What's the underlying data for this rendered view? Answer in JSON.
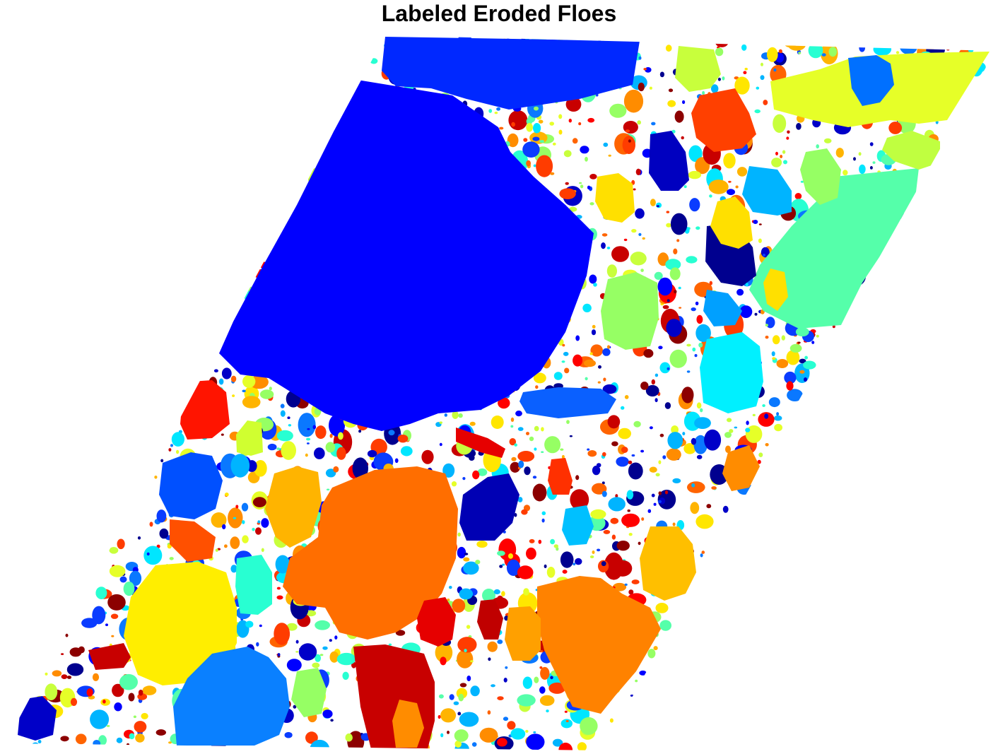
{
  "figure": {
    "title": "Labeled Eroded Floes",
    "background_color": "#ffffff",
    "colormap": "jet",
    "colormap_samples": [
      "#00008f",
      "#0000c8",
      "#0000ff",
      "#0a3cff",
      "#0a78ff",
      "#00b4ff",
      "#00e6ff",
      "#28ffd2",
      "#55ffaa",
      "#96ff64",
      "#c8ff3c",
      "#e6ff28",
      "#ffe600",
      "#ffb400",
      "#ff8c00",
      "#ff6400",
      "#ff3c00",
      "#ff0000",
      "#c80000",
      "#8c0000"
    ],
    "floes": [
      {
        "label": 1,
        "color": "#0a28ff"
      },
      {
        "label": 2,
        "color": "#0000ff"
      },
      {
        "label": 3,
        "color": "#ff6e00"
      },
      {
        "label": 4,
        "color": "#ffe600"
      },
      {
        "label": 5,
        "color": "#0a80ff"
      },
      {
        "label": 6,
        "color": "#c80000"
      },
      {
        "label": 7,
        "color": "#55ffaa"
      },
      {
        "label": 8,
        "color": "#ff8c00"
      },
      {
        "label": 9,
        "color": "#e6ff28"
      },
      {
        "label": 10,
        "color": "#00f0ff"
      },
      {
        "label": 11,
        "color": "#c8ff3c"
      },
      {
        "label": 12,
        "color": "#ff4000"
      },
      {
        "label": 13,
        "color": "#00b4ff"
      },
      {
        "label": 14,
        "color": "#ff1400"
      },
      {
        "label": 15,
        "color": "#0000c8"
      },
      {
        "label": 16,
        "color": "#ffb400"
      },
      {
        "label": 17,
        "color": "#28ffd2"
      },
      {
        "label": 18,
        "color": "#96ff64"
      },
      {
        "label": 19,
        "color": "#8c0000"
      },
      {
        "label": 20,
        "color": "#0a60ff"
      }
    ]
  }
}
